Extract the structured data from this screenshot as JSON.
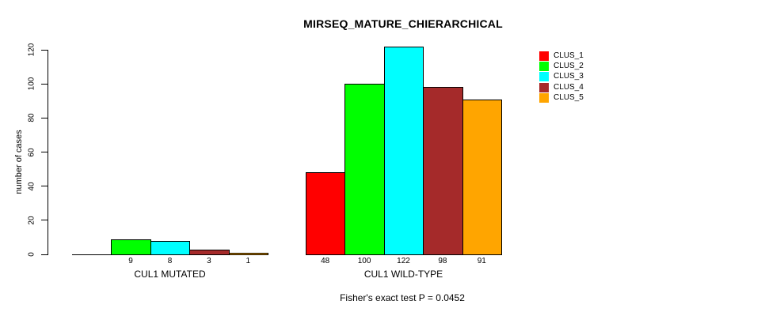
{
  "chart_data": {
    "type": "bar",
    "title": "MIRSEQ_MATURE_CHIERARCHICAL",
    "ylabel": "number of cases",
    "xlabel": "",
    "ylim": [
      0,
      120
    ],
    "yticks": [
      0,
      20,
      40,
      60,
      80,
      100,
      120
    ],
    "grid": false,
    "legend_position": "right",
    "categories": [
      "CUL1 MUTATED",
      "CUL1 WILD-TYPE"
    ],
    "series": [
      {
        "name": "CLUS_1",
        "color": "#FF0000",
        "values": [
          0,
          48
        ]
      },
      {
        "name": "CLUS_2",
        "color": "#00FF00",
        "values": [
          9,
          100
        ]
      },
      {
        "name": "CLUS_3",
        "color": "#00FFFF",
        "values": [
          8,
          122
        ]
      },
      {
        "name": "CLUS_4",
        "color": "#A52A2A",
        "values": [
          3,
          98
        ]
      },
      {
        "name": "CLUS_5",
        "color": "#FFA500",
        "values": [
          1,
          91
        ]
      }
    ],
    "bar_value_labels": [
      [
        "",
        "9",
        "8",
        "3",
        "1"
      ],
      [
        "48",
        "100",
        "122",
        "98",
        "91"
      ]
    ],
    "note": "Fisher's exact test P = 0.0452"
  }
}
